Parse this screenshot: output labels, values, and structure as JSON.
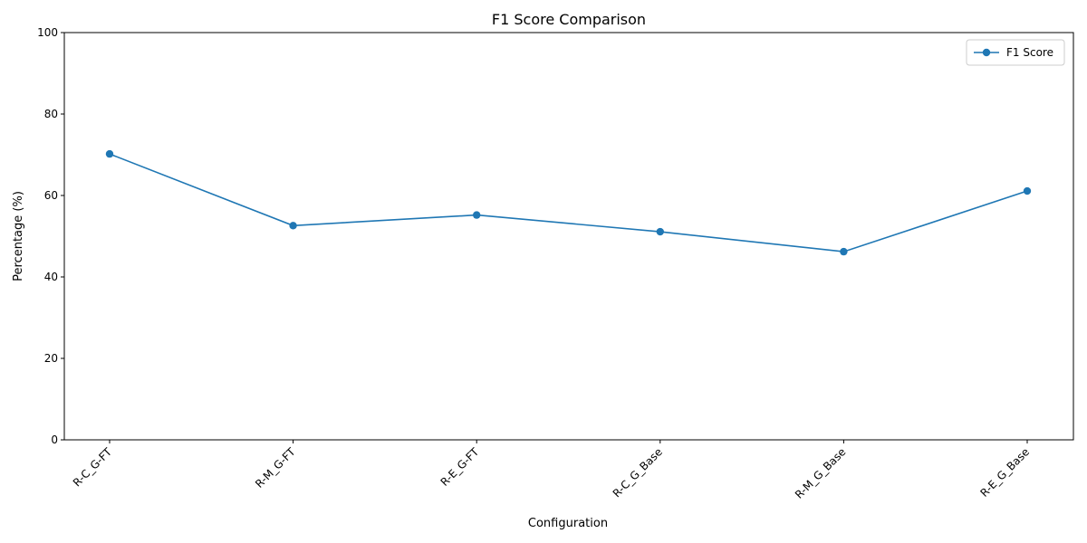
{
  "chart_data": {
    "type": "line",
    "title": "F1 Score Comparison",
    "xlabel": "Configuration",
    "ylabel": "Percentage (%)",
    "categories": [
      "R-C_G-FT",
      "R-M_G-FT",
      "R-E_G-FT",
      "R-C_G_Base",
      "R-M_G_Base",
      "R-E_G_Base"
    ],
    "series": [
      {
        "name": "F1 Score",
        "values": [
          70.2,
          52.6,
          55.2,
          51.1,
          46.2,
          61.1
        ],
        "color": "#1f77b4",
        "marker": "circle"
      }
    ],
    "ylim": [
      0,
      100
    ],
    "yticks": [
      0,
      20,
      40,
      60,
      80,
      100
    ],
    "grid": false,
    "legend_position": "top-right"
  }
}
